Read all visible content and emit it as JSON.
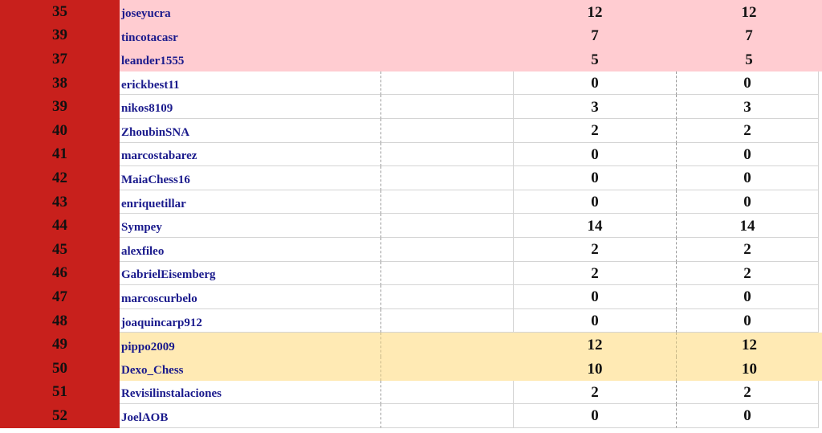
{
  "colors": {
    "rank_bg": "#c8201c",
    "highlight_pink": "#ffccd1",
    "highlight_yellow": "#ffeab4",
    "name_text": "#1a1a8c"
  },
  "rows": [
    {
      "rank": "35",
      "name": "joseyucra",
      "v1": "12",
      "v2": "12",
      "style": "pink"
    },
    {
      "rank": "39",
      "name": "tincotacasr",
      "v1": "7",
      "v2": "7",
      "style": "pink"
    },
    {
      "rank": "37",
      "name": "leander1555",
      "v1": "5",
      "v2": "5",
      "style": "pink"
    },
    {
      "rank": "38",
      "name": "erickbest11",
      "v1": "0",
      "v2": "0",
      "style": "plain"
    },
    {
      "rank": "39",
      "name": "nikos8109",
      "v1": "3",
      "v2": "3",
      "style": "plain"
    },
    {
      "rank": "40",
      "name": "ZhoubinSNA",
      "v1": "2",
      "v2": "2",
      "style": "plain"
    },
    {
      "rank": "41",
      "name": "marcostabarez",
      "v1": "0",
      "v2": "0",
      "style": "plain"
    },
    {
      "rank": "42",
      "name": "MaiaChess16",
      "v1": "0",
      "v2": "0",
      "style": "plain"
    },
    {
      "rank": "43",
      "name": "enriquetillar",
      "v1": "0",
      "v2": "0",
      "style": "plain"
    },
    {
      "rank": "44",
      "name": "Sympey",
      "v1": "14",
      "v2": "14",
      "style": "plain"
    },
    {
      "rank": "45",
      "name": "alexfileo",
      "v1": "2",
      "v2": "2",
      "style": "plain"
    },
    {
      "rank": "46",
      "name": "GabrielEisemberg",
      "v1": "2",
      "v2": "2",
      "style": "plain"
    },
    {
      "rank": "47",
      "name": "marcoscurbelo",
      "v1": "0",
      "v2": "0",
      "style": "plain"
    },
    {
      "rank": "48",
      "name": "joaquincarp912",
      "v1": "0",
      "v2": "0",
      "style": "plain"
    },
    {
      "rank": "49",
      "name": "pippo2009",
      "v1": "12",
      "v2": "12",
      "style": "yellow"
    },
    {
      "rank": "50",
      "name": "Dexo_Chess",
      "v1": "10",
      "v2": "10",
      "style": "yellow"
    },
    {
      "rank": "51",
      "name": "Revisilinstalaciones",
      "v1": "2",
      "v2": "2",
      "style": "plain"
    },
    {
      "rank": "52",
      "name": "JoelAOB",
      "v1": "0",
      "v2": "0",
      "style": "plain"
    }
  ]
}
